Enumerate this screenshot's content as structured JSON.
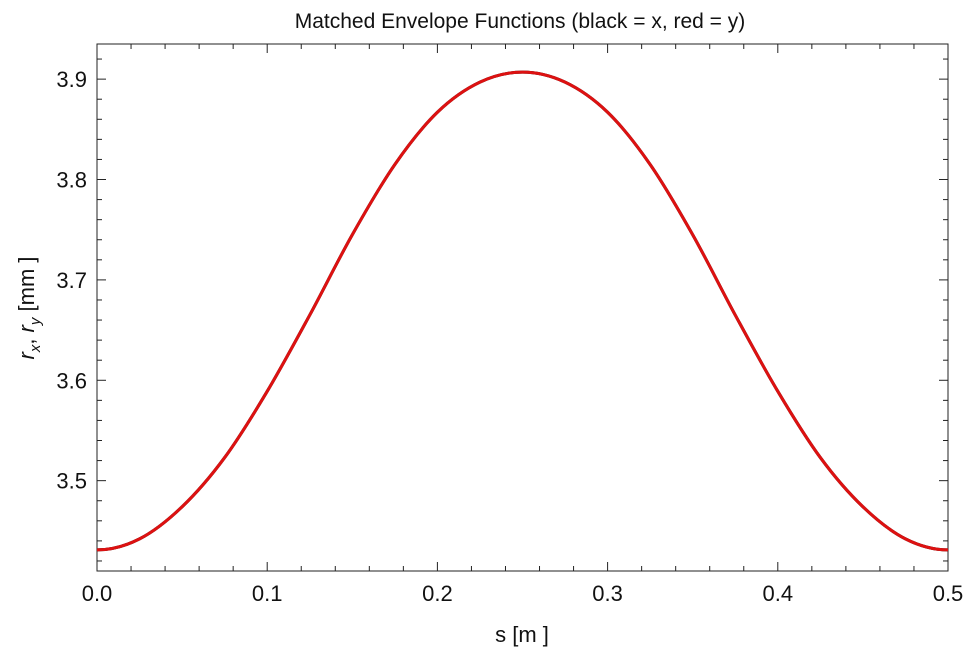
{
  "chart_data": {
    "type": "line",
    "title": "Matched Envelope Functions (black = x, red = y)",
    "xlabel": "s [m ]",
    "ylabel_parts": {
      "r1": "r",
      "sub1": "x",
      "comma": ", ",
      "r2": "r",
      "sub2": "y",
      "unit": " [mm  ]"
    },
    "xlim": [
      0.0,
      0.5
    ],
    "ylim": [
      3.41,
      3.935
    ],
    "x_ticks": [
      "0.0",
      "0.1",
      "0.2",
      "0.3",
      "0.4",
      "0.5"
    ],
    "y_ticks": [
      "3.5",
      "3.6",
      "3.7",
      "3.8",
      "3.9"
    ],
    "grid": false,
    "series": [
      {
        "color": "#000000",
        "x": [
          0.0,
          0.025,
          0.05,
          0.075,
          0.1,
          0.125,
          0.15,
          0.175,
          0.2,
          0.225,
          0.25,
          0.275,
          0.3,
          0.325,
          0.35,
          0.375,
          0.4,
          0.425,
          0.45,
          0.475,
          0.5
        ],
        "y": [
          3.431,
          3.442,
          3.474,
          3.523,
          3.589,
          3.665,
          3.745,
          3.815,
          3.867,
          3.897,
          3.907,
          3.897,
          3.867,
          3.815,
          3.745,
          3.665,
          3.589,
          3.523,
          3.474,
          3.442,
          3.431
        ]
      },
      {
        "color": "#dd1111",
        "x": [
          0.0,
          0.025,
          0.05,
          0.075,
          0.1,
          0.125,
          0.15,
          0.175,
          0.2,
          0.225,
          0.25,
          0.275,
          0.3,
          0.325,
          0.35,
          0.375,
          0.4,
          0.425,
          0.45,
          0.475,
          0.5
        ],
        "y": [
          3.431,
          3.442,
          3.474,
          3.523,
          3.589,
          3.665,
          3.745,
          3.815,
          3.867,
          3.897,
          3.907,
          3.897,
          3.867,
          3.815,
          3.745,
          3.665,
          3.589,
          3.523,
          3.474,
          3.442,
          3.431
        ]
      }
    ]
  }
}
